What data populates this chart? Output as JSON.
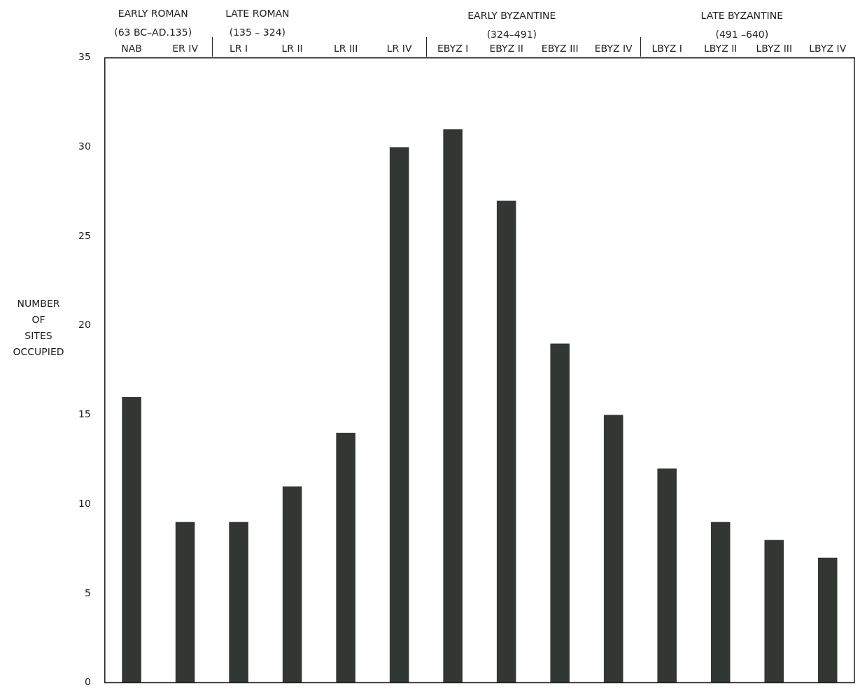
{
  "chart_data": {
    "type": "bar",
    "ylabel": "NUMBER OF SITES OCCUPIED",
    "categories": [
      "NAB",
      "ER IV",
      "LR I",
      "LR II",
      "LR III",
      "LR IV",
      "EBYZ I",
      "EBYZ II",
      "EBYZ III",
      "EBYZ IV",
      "LBYZ I",
      "LBYZ II",
      "LBYZ III",
      "LBYZ IV"
    ],
    "values": [
      16,
      9,
      9,
      11,
      14,
      30,
      31,
      27,
      19,
      15,
      12,
      9,
      8,
      7
    ],
    "color": "#333733",
    "ylim": [
      0,
      35
    ],
    "yticks": [
      0,
      5,
      10,
      15,
      20,
      25,
      30,
      35
    ],
    "grid": false,
    "legend": false,
    "annotations": [
      "EARLY ROMAN",
      "(63 BC–AD.135)",
      "LATE ROMAN",
      "(135 – 324)",
      "EARLY BYZANTINE",
      "(324–491)",
      "LATE BYZANTINE",
      "(491 –640)"
    ]
  }
}
